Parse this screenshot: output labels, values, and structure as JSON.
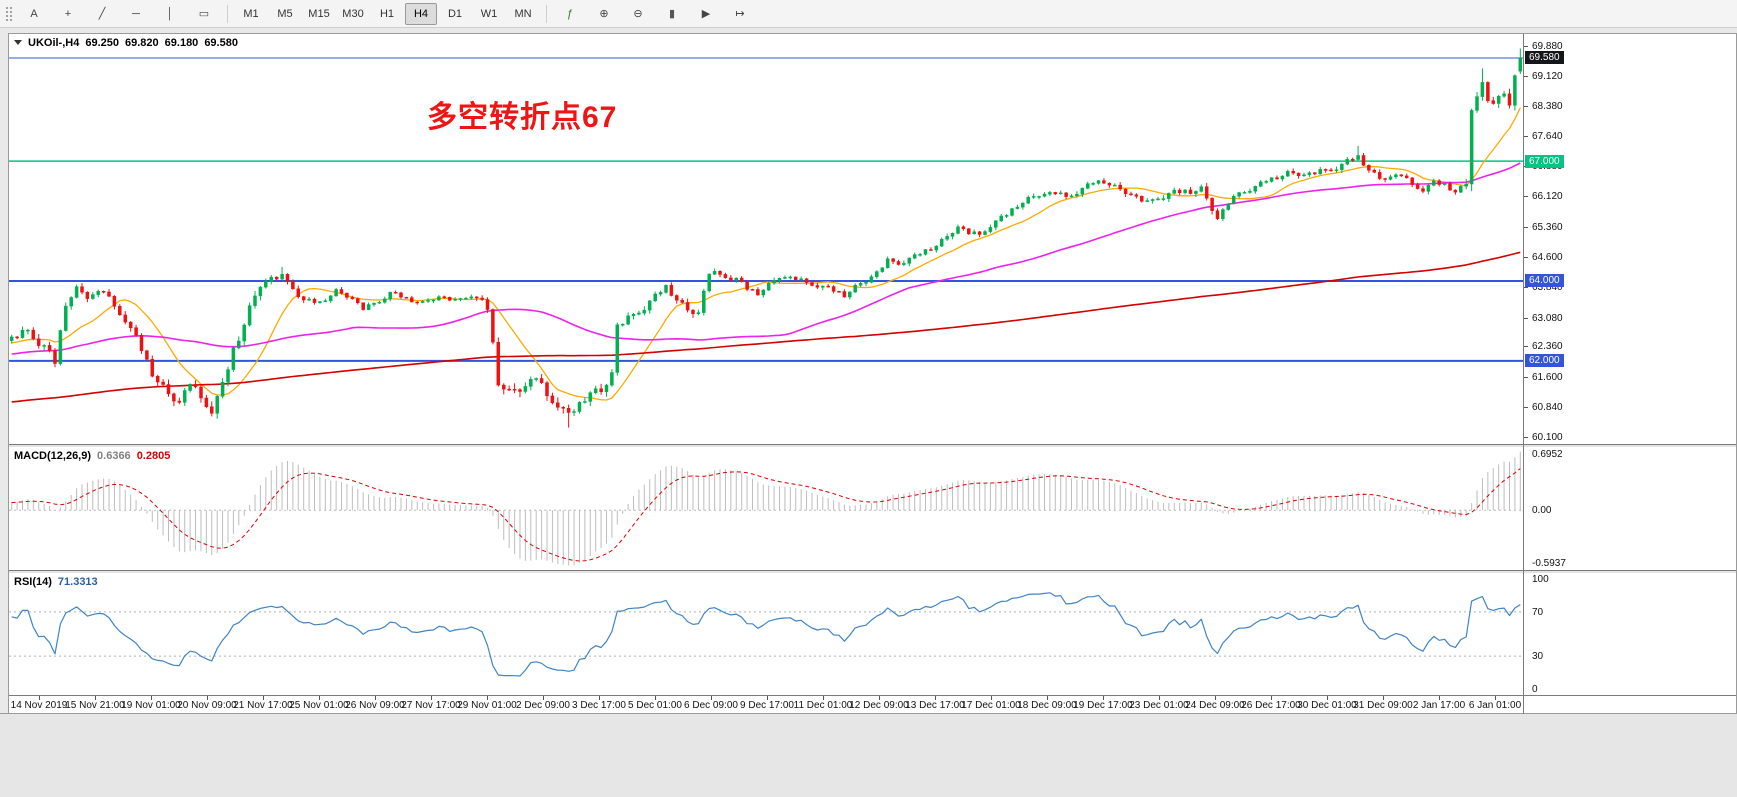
{
  "toolbar": {
    "tools_left": [
      {
        "name": "text-label-tool",
        "glyph": "A"
      },
      {
        "name": "crosshair-tool",
        "glyph": "+"
      },
      {
        "name": "trendline-tool",
        "glyph": "╱"
      },
      {
        "name": "horizontal-line-tool",
        "glyph": "─"
      },
      {
        "name": "vertical-line-tool",
        "glyph": "│"
      },
      {
        "name": "rectangle-tool",
        "glyph": "▭"
      }
    ],
    "timeframes": [
      "M1",
      "M5",
      "M15",
      "M30",
      "H1",
      "H4",
      "D1",
      "W1",
      "MN"
    ],
    "active_timeframe": "H4",
    "tools_right": [
      {
        "name": "indicators",
        "glyph": "ƒ"
      },
      {
        "name": "zoom-in",
        "glyph": "⊕"
      },
      {
        "name": "zoom-out",
        "glyph": "⊖"
      },
      {
        "name": "chart-candles",
        "glyph": "▮"
      },
      {
        "name": "auto-scroll",
        "glyph": "▶"
      },
      {
        "name": "chart-shift",
        "glyph": "↦"
      }
    ]
  },
  "main_header": {
    "symbol": "UKOil-,H4",
    "open": "69.250",
    "high": "69.820",
    "low": "69.180",
    "close": "69.580"
  },
  "chart_data": {
    "type": "candlestick",
    "symbol": "UKOil-",
    "timeframe": "H4",
    "ohlc_current": {
      "open": 69.25,
      "high": 69.82,
      "low": 69.18,
      "close": 69.58
    },
    "candle_up_color": "#00b050",
    "candle_down_color": "#ee1111",
    "price_axis": {
      "min": 59.92,
      "max": 70.18,
      "ticks": [
        69.88,
        69.12,
        68.38,
        67.64,
        66.88,
        66.12,
        65.36,
        64.6,
        63.84,
        63.08,
        62.36,
        61.6,
        60.84,
        60.1
      ]
    },
    "time_axis_labels": [
      "14 Nov 2019",
      "15 Nov 21:00",
      "19 Nov 01:00",
      "20 Nov 09:00",
      "21 Nov 17:00",
      "25 Nov 01:00",
      "26 Nov 09:00",
      "27 Nov 17:00",
      "29 Nov 01:00",
      "2 Dec 09:00",
      "3 Dec 17:00",
      "5 Dec 01:00",
      "6 Dec 09:00",
      "9 Dec 17:00",
      "11 Dec 01:00",
      "12 Dec 09:00",
      "13 Dec 17:00",
      "17 Dec 01:00",
      "18 Dec 09:00",
      "19 Dec 17:00",
      "23 Dec 01:00",
      "24 Dec 09:00",
      "26 Dec 17:00",
      "30 Dec 01:00",
      "31 Dec 09:00",
      "2 Jan 17:00",
      "6 Jan 01:00"
    ],
    "bar_count": 280,
    "close_anchors": [
      [
        0,
        62.55
      ],
      [
        3,
        62.75
      ],
      [
        6,
        62.35
      ],
      [
        8,
        61.95
      ],
      [
        10,
        63.45
      ],
      [
        12,
        63.8
      ],
      [
        14,
        63.6
      ],
      [
        17,
        63.75
      ],
      [
        19,
        63.35
      ],
      [
        21,
        63.05
      ],
      [
        23,
        62.55
      ],
      [
        26,
        61.7
      ],
      [
        29,
        61.15
      ],
      [
        31,
        60.95
      ],
      [
        33,
        61.45
      ],
      [
        35,
        61.05
      ],
      [
        37,
        60.8
      ],
      [
        39,
        61.35
      ],
      [
        41,
        62.25
      ],
      [
        44,
        63.3
      ],
      [
        46,
        63.9
      ],
      [
        48,
        64.05
      ],
      [
        50,
        64.1
      ],
      [
        52,
        63.85
      ],
      [
        54,
        63.5
      ],
      [
        57,
        63.45
      ],
      [
        60,
        63.75
      ],
      [
        63,
        63.55
      ],
      [
        65,
        63.3
      ],
      [
        68,
        63.5
      ],
      [
        70,
        63.7
      ],
      [
        73,
        63.55
      ],
      [
        76,
        63.45
      ],
      [
        79,
        63.6
      ],
      [
        82,
        63.5
      ],
      [
        85,
        63.65
      ],
      [
        87,
        63.45
      ],
      [
        88,
        63.3
      ],
      [
        90,
        61.5
      ],
      [
        92,
        61.2
      ],
      [
        95,
        61.35
      ],
      [
        97,
        61.6
      ],
      [
        99,
        61.1
      ],
      [
        101,
        60.95
      ],
      [
        103,
        60.6
      ],
      [
        105,
        60.9
      ],
      [
        107,
        61.25
      ],
      [
        109,
        61.2
      ],
      [
        111,
        61.7
      ],
      [
        112,
        62.85
      ],
      [
        114,
        63.05
      ],
      [
        117,
        63.35
      ],
      [
        119,
        63.6
      ],
      [
        121,
        63.85
      ],
      [
        123,
        63.55
      ],
      [
        125,
        63.25
      ],
      [
        127,
        63.2
      ],
      [
        129,
        64.2
      ],
      [
        131,
        64.15
      ],
      [
        134,
        64.05
      ],
      [
        136,
        63.8
      ],
      [
        138,
        63.7
      ],
      [
        140,
        63.9
      ],
      [
        142,
        64.1
      ],
      [
        145,
        64.05
      ],
      [
        147,
        63.95
      ],
      [
        149,
        63.9
      ],
      [
        151,
        63.8
      ],
      [
        154,
        63.65
      ],
      [
        156,
        63.85
      ],
      [
        158,
        64.0
      ],
      [
        160,
        64.2
      ],
      [
        162,
        64.5
      ],
      [
        164,
        64.45
      ],
      [
        167,
        64.6
      ],
      [
        169,
        64.75
      ],
      [
        171,
        64.9
      ],
      [
        173,
        65.1
      ],
      [
        175,
        65.35
      ],
      [
        177,
        65.2
      ],
      [
        179,
        65.15
      ],
      [
        181,
        65.4
      ],
      [
        184,
        65.65
      ],
      [
        186,
        65.9
      ],
      [
        188,
        66.05
      ],
      [
        190,
        66.15
      ],
      [
        193,
        66.2
      ],
      [
        195,
        66.1
      ],
      [
        198,
        66.3
      ],
      [
        200,
        66.45
      ],
      [
        202,
        66.5
      ],
      [
        204,
        66.35
      ],
      [
        207,
        66.15
      ],
      [
        210,
        65.95
      ],
      [
        212,
        66.1
      ],
      [
        215,
        66.2
      ],
      [
        218,
        66.25
      ],
      [
        220,
        66.3
      ],
      [
        222,
        65.8
      ],
      [
        223,
        65.55
      ],
      [
        225,
        65.95
      ],
      [
        227,
        66.2
      ],
      [
        230,
        66.35
      ],
      [
        232,
        66.5
      ],
      [
        234,
        66.6
      ],
      [
        236,
        66.7
      ],
      [
        239,
        66.65
      ],
      [
        241,
        66.7
      ],
      [
        244,
        66.8
      ],
      [
        246,
        66.9
      ],
      [
        248,
        67.05
      ],
      [
        249,
        67.1
      ],
      [
        251,
        66.8
      ],
      [
        253,
        66.55
      ],
      [
        255,
        66.6
      ],
      [
        257,
        66.65
      ],
      [
        259,
        66.4
      ],
      [
        261,
        66.3
      ],
      [
        263,
        66.45
      ],
      [
        265,
        66.4
      ],
      [
        267,
        66.25
      ],
      [
        269,
        66.4
      ],
      [
        270,
        68.35
      ],
      [
        271,
        68.6
      ],
      [
        272,
        68.9
      ],
      [
        273,
        68.55
      ],
      [
        274,
        68.35
      ],
      [
        275,
        68.6
      ],
      [
        276,
        68.75
      ],
      [
        277,
        68.5
      ],
      [
        278,
        69.1
      ],
      [
        279,
        69.58
      ]
    ],
    "volatility_anchors": [
      [
        0,
        0.18
      ],
      [
        8,
        0.22
      ],
      [
        12,
        0.15
      ],
      [
        20,
        0.15
      ],
      [
        26,
        0.2
      ],
      [
        37,
        0.22
      ],
      [
        41,
        0.25
      ],
      [
        50,
        0.15
      ],
      [
        60,
        0.1
      ],
      [
        85,
        0.1
      ],
      [
        88,
        0.2
      ],
      [
        90,
        0.25
      ],
      [
        103,
        0.22
      ],
      [
        111,
        0.2
      ],
      [
        113,
        0.18
      ],
      [
        120,
        0.14
      ],
      [
        128,
        0.18
      ],
      [
        132,
        0.12
      ],
      [
        160,
        0.12
      ],
      [
        200,
        0.12
      ],
      [
        222,
        0.16
      ],
      [
        226,
        0.1
      ],
      [
        248,
        0.14
      ],
      [
        252,
        0.12
      ],
      [
        268,
        0.12
      ],
      [
        270,
        0.3
      ],
      [
        274,
        0.2
      ],
      [
        279,
        0.22
      ]
    ],
    "prehistory_anchors": [
      [
        -240,
        59.3
      ],
      [
        -170,
        60.3
      ],
      [
        -100,
        61.3
      ],
      [
        -40,
        62.0
      ],
      [
        -1,
        62.5
      ]
    ],
    "noise_pattern": [
      0.55,
      -0.35,
      0.9,
      0.2,
      -0.65,
      -1.0,
      0.35,
      1.0,
      -0.15,
      0.6,
      -0.85,
      -0.45,
      0.75,
      0.25,
      -0.55,
      0.1
    ],
    "wick_up_pattern": [
      0.5,
      0.2,
      0.8,
      0.3,
      0.6,
      1.0,
      0.25,
      0.7
    ],
    "wick_dn_pattern": [
      0.7,
      0.4,
      0.25,
      0.9,
      0.3,
      0.6,
      1.0,
      0.35
    ],
    "wick_overrides": [
      {
        "i": 37,
        "low": 60.68
      },
      {
        "i": 50,
        "high": 64.35
      },
      {
        "i": 103,
        "low": 60.33
      },
      {
        "i": 249,
        "high": 67.38
      },
      {
        "i": 272,
        "high": 69.32
      }
    ],
    "last_candle": [
      69.25,
      69.82,
      69.18,
      69.58
    ],
    "moving_averages": [
      {
        "name": "fast-ma",
        "period": 12,
        "color": "#ffaa00",
        "width": 1.3
      },
      {
        "name": "medium-ma",
        "period": 55,
        "color": "#ee22ee",
        "width": 1.6
      },
      {
        "name": "slow-ma",
        "period": 240,
        "color": "#d40000",
        "width": 1.6
      }
    ],
    "hlines": [
      {
        "price": 69.58,
        "color": "#3355dd",
        "width": 1
      },
      {
        "price": 67.0,
        "color": "#00c583",
        "width": 1.5
      },
      {
        "price": 64.0,
        "color": "#3355dd",
        "width": 2
      },
      {
        "price": 62.0,
        "color": "#3355dd",
        "width": 2
      }
    ],
    "scale_badges": [
      {
        "price": 69.58,
        "label": "69.580",
        "bg": "#15161a",
        "fg": "#ffffff"
      },
      {
        "price": 67.0,
        "label": "67.000",
        "bg": "#00c583",
        "fg": "#ffffff"
      },
      {
        "price": 64.0,
        "label": "64.000",
        "bg": "#3355dd",
        "fg": "#ffffff"
      },
      {
        "price": 62.0,
        "label": "62.000",
        "bg": "#3355dd",
        "fg": "#ffffff"
      }
    ],
    "macd": {
      "label": "MACD(12,26,9)",
      "value_main": "0.6366",
      "value_signal": "0.2805",
      "scale_top": "0.6952",
      "scale_zero": "0.00",
      "scale_bottom": "-0.5937",
      "fast": 12,
      "slow": 26,
      "signal": 9,
      "hist_color": "#bdbdbd",
      "signal_color": "#dd0000"
    },
    "rsi": {
      "label": "RSI(14)",
      "value": "71.3313",
      "period": 14,
      "color": "#3d85c8",
      "levels": [
        70,
        30
      ],
      "scale_labels": [
        100,
        70,
        30,
        0
      ]
    },
    "annotation": {
      "text": "多空转折点67",
      "color": "#f01414"
    }
  }
}
